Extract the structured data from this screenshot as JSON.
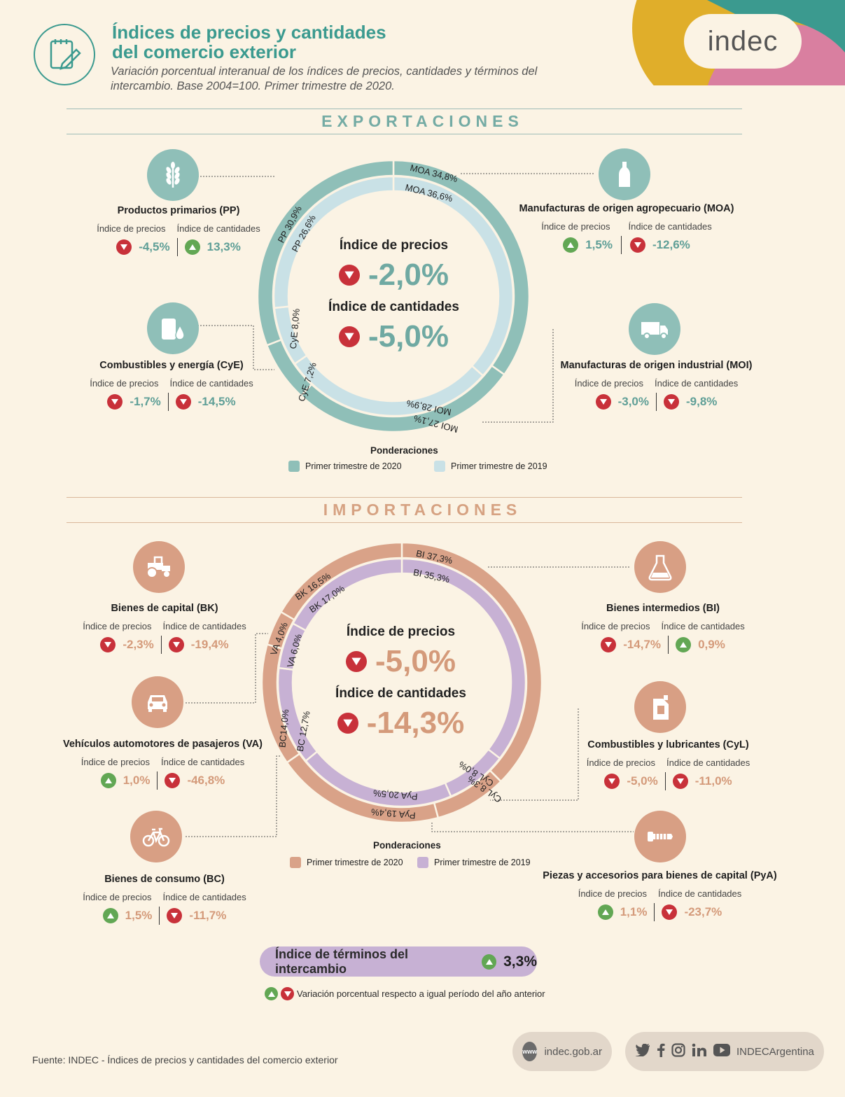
{
  "header": {
    "title_line1": "Índices de precios y cantidades",
    "title_line2": "del comercio exterior",
    "subtitle": "Variación porcentual interanual de los índices de precios, cantidades y términos del intercambio. Base 2004=100. Primer trimestre de 2020.",
    "logo_text": "indec",
    "colors": {
      "teal": "#3b9a8f",
      "yellow": "#e0ae2a",
      "pink": "#d97fa0"
    }
  },
  "labels": {
    "precios": "Índice de precios",
    "cantidades": "Índice de cantidades"
  },
  "exportaciones": {
    "title": "EXPORTACIONES",
    "center": {
      "precios_label": "Índice de precios",
      "precios_value": "-2,0%",
      "precios_dir": "down",
      "cantidades_label": "Índice de cantidades",
      "cantidades_value": "-5,0%",
      "cantidades_dir": "down"
    },
    "categories": [
      {
        "name": "Productos primarios (PP)",
        "icon": "wheat-icon",
        "precios": "-4,5%",
        "precios_dir": "down",
        "cantidades": "13,3%",
        "cantidades_dir": "up"
      },
      {
        "name": "Manufacturas de origen agropecuario (MOA)",
        "icon": "bottle-icon",
        "precios": "1,5%",
        "precios_dir": "up",
        "cantidades": "-12,6%",
        "cantidades_dir": "down"
      },
      {
        "name": "Combustibles y energía (CyE)",
        "icon": "fuel-barrel-icon",
        "precios": "-1,7%",
        "precios_dir": "down",
        "cantidades": "-14,5%",
        "cantidades_dir": "down"
      },
      {
        "name": "Manufacturas de origen industrial (MOI)",
        "icon": "truck-icon",
        "precios": "-3,0%",
        "precios_dir": "down",
        "cantidades": "-9,8%",
        "cantidades_dir": "down"
      }
    ],
    "outer_ring": [
      {
        "label": "MOA 34,8%",
        "value": 34.8
      },
      {
        "label": "MOI 27,1%",
        "value": 27.1
      },
      {
        "label": "CyE 7,2%",
        "value": 7.2
      },
      {
        "label": "PP 30,9%",
        "value": 30.9
      }
    ],
    "inner_ring": [
      {
        "label": "MOA 36,6%",
        "value": 36.6
      },
      {
        "label": "MOI 28,9%",
        "value": 28.9
      },
      {
        "label": "CyE 8,0%",
        "value": 8.0
      },
      {
        "label": "PP 26,6%",
        "value": 26.6
      }
    ],
    "ponderaciones": "Ponderaciones",
    "legend": [
      {
        "label": "Primer trimestre de 2020",
        "color": "#8fbfb8"
      },
      {
        "label": "Primer trimestre de 2019",
        "color": "#c9e1e6"
      }
    ]
  },
  "importaciones": {
    "title": "IMPORTACIONES",
    "center": {
      "precios_label": "Índice de precios",
      "precios_value": "-5,0%",
      "precios_dir": "down",
      "cantidades_label": "Índice de cantidades",
      "cantidades_value": "-14,3%",
      "cantidades_dir": "down"
    },
    "categories": [
      {
        "name": "Bienes de capital (BK)",
        "icon": "tractor-icon",
        "precios": "-2,3%",
        "precios_dir": "down",
        "cantidades": "-19,4%",
        "cantidades_dir": "down"
      },
      {
        "name": "Bienes intermedios (BI)",
        "icon": "flask-icon",
        "precios": "-14,7%",
        "precios_dir": "down",
        "cantidades": "0,9%",
        "cantidades_dir": "up"
      },
      {
        "name": "Vehículos automotores de pasajeros (VA)",
        "icon": "car-icon",
        "precios": "1,0%",
        "precios_dir": "up",
        "cantidades": "-46,8%",
        "cantidades_dir": "down"
      },
      {
        "name": "Combustibles y lubricantes (CyL)",
        "icon": "jerrycan-icon",
        "precios": "-5,0%",
        "precios_dir": "down",
        "cantidades": "-11,0%",
        "cantidades_dir": "down"
      },
      {
        "name": "Bienes de consumo (BC)",
        "icon": "bicycle-icon",
        "precios": "1,5%",
        "precios_dir": "up",
        "cantidades": "-11,7%",
        "cantidades_dir": "down"
      },
      {
        "name": "Piezas y accesorios para bienes de capital (PyA)",
        "icon": "screw-icon",
        "precios": "1,1%",
        "precios_dir": "up",
        "cantidades": "-23,7%",
        "cantidades_dir": "down"
      }
    ],
    "outer_ring": [
      {
        "label": "BI 37,3%",
        "value": 37.3
      },
      {
        "label": "CyL 8,3%",
        "value": 8.3
      },
      {
        "label": "PyA 19,4%",
        "value": 19.4
      },
      {
        "label": "BC14,0%",
        "value": 14.0
      },
      {
        "label": "VA 4,0%",
        "value": 4.0
      },
      {
        "label": "BK 16,5%",
        "value": 16.5
      }
    ],
    "inner_ring": [
      {
        "label": "BI 35,3%",
        "value": 35.3
      },
      {
        "label": "CyL 8,0%",
        "value": 8.0
      },
      {
        "label": "PyA 20,5%",
        "value": 20.5
      },
      {
        "label": "BC 12,7%",
        "value": 12.7
      },
      {
        "label": "VA 6,0%",
        "value": 6.0
      },
      {
        "label": "BK 17,0%",
        "value": 17.0
      }
    ],
    "ponderaciones": "Ponderaciones",
    "legend": [
      {
        "label": "Primer trimestre de 2020",
        "color": "#d9a288"
      },
      {
        "label": "Primer trimestre de 2019",
        "color": "#c7b1d4"
      }
    ]
  },
  "terminos": {
    "label": "Índice de términos del intercambio",
    "value": "3,3%",
    "dir": "up"
  },
  "footnote": "Variación porcentual respecto a igual período del año anterior",
  "footer": {
    "source": "Fuente: INDEC - Índices de precios y cantidades del comercio exterior",
    "www_badge": "www",
    "website": "indec.gob.ar",
    "social_handle": "INDECArgentina",
    "social_icons": [
      "twitter-icon",
      "facebook-icon",
      "instagram-icon",
      "linkedin-icon",
      "youtube-icon"
    ]
  }
}
